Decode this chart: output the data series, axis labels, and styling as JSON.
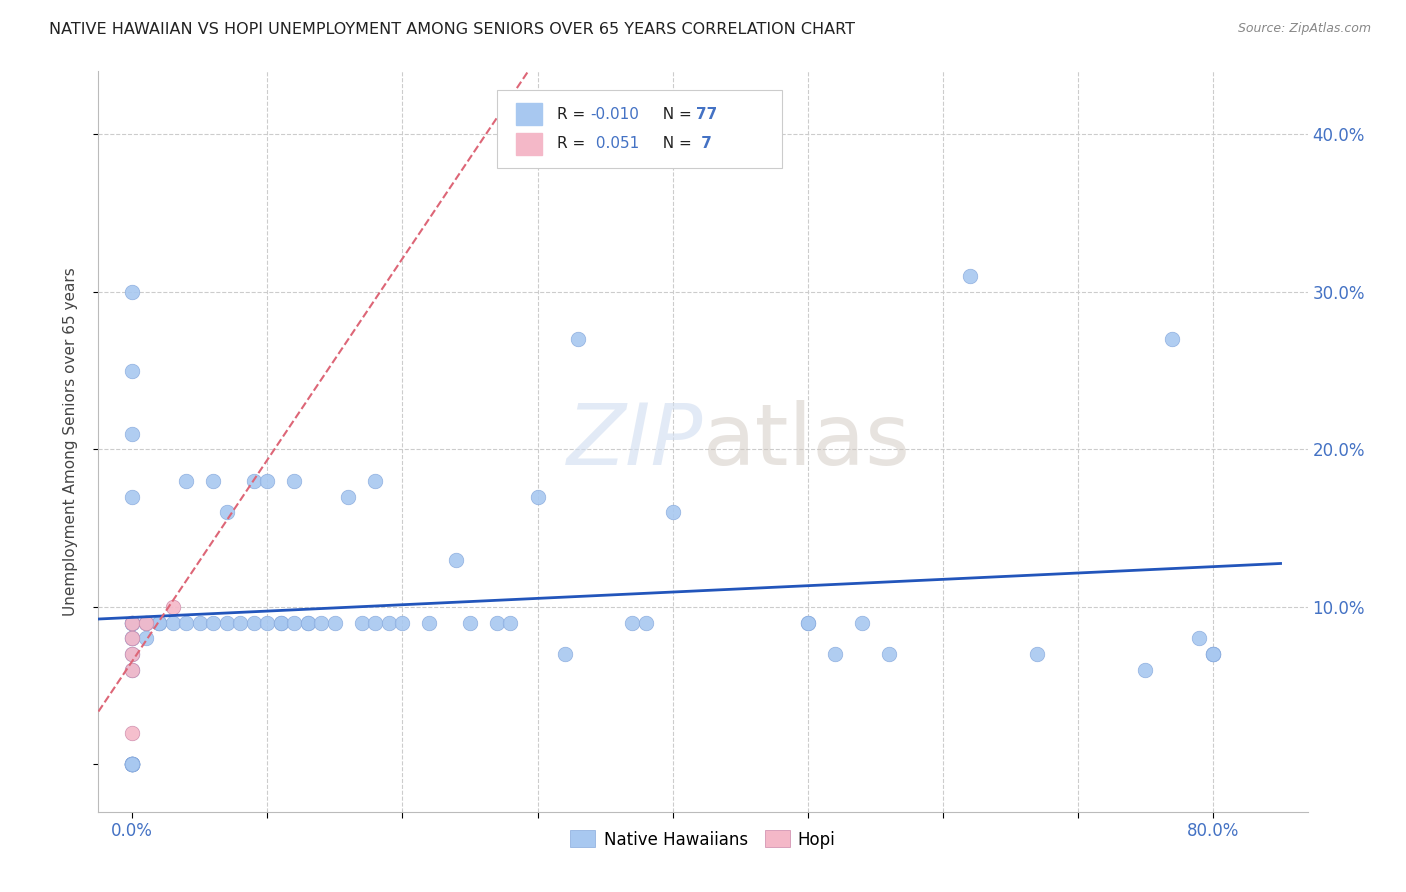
{
  "title": "NATIVE HAWAIIAN VS HOPI UNEMPLOYMENT AMONG SENIORS OVER 65 YEARS CORRELATION CHART",
  "source": "Source: ZipAtlas.com",
  "ylabel_label": "Unemployment Among Seniors over 65 years",
  "xlim": [
    -0.025,
    0.87
  ],
  "ylim": [
    -0.03,
    0.44
  ],
  "r_hawaiian": -0.01,
  "n_hawaiian": 77,
  "r_hopi": 0.051,
  "n_hopi": 7,
  "hawaiian_color": "#a8c8f0",
  "hopi_color": "#f4b8c8",
  "hawaiian_line_color": "#2255bb",
  "hopi_line_color": "#dd6677",
  "hawaiian_x": [
    0.0,
    0.0,
    0.0,
    0.0,
    0.0,
    0.0,
    0.0,
    0.0,
    0.0,
    0.0,
    0.0,
    0.0,
    0.0,
    0.0,
    0.0,
    0.0,
    0.0,
    0.0,
    0.0,
    0.0,
    0.0,
    0.0,
    0.0,
    0.01,
    0.01,
    0.01,
    0.01,
    0.01,
    0.01,
    0.01,
    0.03,
    0.04,
    0.04,
    0.05,
    0.06,
    0.06,
    0.07,
    0.08,
    0.09,
    0.09,
    0.1,
    0.1,
    0.11,
    0.12,
    0.12,
    0.13,
    0.14,
    0.15,
    0.15,
    0.16,
    0.17,
    0.18,
    0.19,
    0.2,
    0.21,
    0.22,
    0.24,
    0.25,
    0.27,
    0.28,
    0.3,
    0.32,
    0.33,
    0.37,
    0.38,
    0.4,
    0.5,
    0.52,
    0.56,
    0.62,
    0.67,
    0.75,
    0.77,
    0.79,
    0.8,
    0.8,
    0.8
  ],
  "hawaiian_y": [
    0.0,
    0.0,
    0.0,
    0.0,
    0.0,
    0.0,
    0.0,
    0.06,
    0.07,
    0.08,
    0.08,
    0.08,
    0.09,
    0.09,
    0.09,
    0.09,
    0.09,
    0.09,
    0.3,
    0.25,
    0.21,
    0.16,
    0.17,
    0.09,
    0.09,
    0.09,
    0.09,
    0.08,
    0.07,
    0.06,
    0.09,
    0.18,
    0.09,
    0.09,
    0.18,
    0.09,
    0.16,
    0.09,
    0.18,
    0.09,
    0.18,
    0.09,
    0.09,
    0.18,
    0.09,
    0.09,
    0.09,
    0.09,
    0.09,
    0.17,
    0.09,
    0.17,
    0.09,
    0.09,
    0.09,
    0.09,
    0.09,
    0.13,
    0.18,
    0.09,
    0.17,
    0.07,
    0.27,
    0.09,
    0.09,
    0.16,
    0.09,
    0.07,
    0.07,
    0.31,
    0.07,
    0.06,
    0.27,
    0.08,
    0.07,
    0.07,
    0.07
  ],
  "hopi_x": [
    0.0,
    0.0,
    0.0,
    0.0,
    0.0,
    0.01,
    0.03
  ],
  "hopi_y": [
    0.02,
    0.06,
    0.07,
    0.07,
    0.09,
    0.09,
    0.09
  ]
}
